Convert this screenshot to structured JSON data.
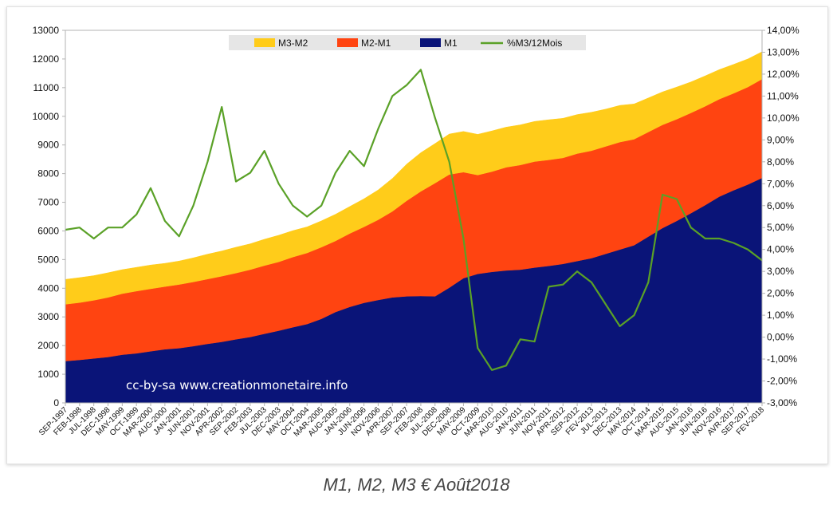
{
  "caption": "M1, M2, M3 € Août2018",
  "chart_data": {
    "type": "area",
    "title": "",
    "annotation": "cc-by-sa www.creationmonetaire.info",
    "x": [
      "SEP-1997",
      "FEB-1998",
      "JUL-1998",
      "DEC-1998",
      "MAY-1999",
      "OCT-1999",
      "MAR-2000",
      "AUG-2000",
      "JAN-2001",
      "JUN-2001",
      "NOV-2001",
      "APR-2002",
      "SEP-2002",
      "FEB-2003",
      "JUL-2003",
      "DEC-2003",
      "MAY-2004",
      "OCT-2004",
      "MAR-2005",
      "AUG-2005",
      "JAN-2006",
      "JUN-2006",
      "NOV-2006",
      "APR-2007",
      "SEP-2007",
      "FEB-2008",
      "JUL-2008",
      "DEC-2008",
      "MAY-2009",
      "OCT-2009",
      "MAR-2010",
      "AUG-2010",
      "JAN-2011",
      "JUN-2011",
      "NOV-2011",
      "APR-2012",
      "SEP-2012",
      "FEV-2013",
      "JUL-2013",
      "DEC-2013",
      "MAY-2014",
      "OCT-2014",
      "MAR-2015",
      "AUG-2015",
      "JAN-2016",
      "JUN-2016",
      "NOV-2016",
      "AVR-2017",
      "SEP-2017",
      "FEV-2018"
    ],
    "left_axis": {
      "ylim": [
        0,
        13000
      ],
      "ticks": [
        "0",
        "1000",
        "2000",
        "3000",
        "4000",
        "5000",
        "6000",
        "7000",
        "8000",
        "9000",
        "10000",
        "11000",
        "12000",
        "13000"
      ]
    },
    "right_axis": {
      "ylim": [
        -3,
        14
      ],
      "ticks": [
        "-3,00%",
        "-2,00%",
        "-1,00%",
        "0,00%",
        "1,00%",
        "2,00%",
        "3,00%",
        "4,00%",
        "5,00%",
        "6,00%",
        "7,00%",
        "8,00%",
        "9,00%",
        "10,00%",
        "11,00%",
        "12,00%",
        "13,00%",
        "14,00%"
      ]
    },
    "legend_position": "top-center",
    "grid": false,
    "stacked": true,
    "series": [
      {
        "name": "M3-M2",
        "kind": "area",
        "axis": "left",
        "color": "#ffcc1a",
        "values": [
          870,
          870,
          860,
          860,
          840,
          830,
          830,
          810,
          820,
          840,
          870,
          880,
          900,
          900,
          920,
          930,
          920,
          910,
          920,
          930,
          940,
          980,
          1040,
          1150,
          1280,
          1350,
          1380,
          1410,
          1420,
          1420,
          1420,
          1400,
          1400,
          1400,
          1400,
          1380,
          1360,
          1340,
          1300,
          1280,
          1230,
          1190,
          1150,
          1120,
          1080,
          1060,
          1030,
          1010,
          980,
          950
        ]
      },
      {
        "name": "M2-M1",
        "kind": "area",
        "axis": "left",
        "color": "#ff4411",
        "values": [
          1980,
          2000,
          2030,
          2080,
          2130,
          2170,
          2180,
          2190,
          2220,
          2240,
          2260,
          2290,
          2310,
          2350,
          2380,
          2400,
          2450,
          2480,
          2500,
          2480,
          2560,
          2650,
          2800,
          3000,
          3330,
          3650,
          3950,
          3950,
          3700,
          3450,
          3500,
          3600,
          3650,
          3700,
          3700,
          3700,
          3750,
          3750,
          3750,
          3750,
          3700,
          3650,
          3600,
          3550,
          3500,
          3450,
          3400,
          3380,
          3400,
          3450
        ]
      },
      {
        "name": "M1",
        "kind": "area",
        "axis": "left",
        "color": "#0a1478",
        "values": [
          1460,
          1500,
          1550,
          1600,
          1680,
          1730,
          1800,
          1870,
          1910,
          1980,
          2060,
          2130,
          2220,
          2300,
          2410,
          2520,
          2640,
          2750,
          2930,
          3170,
          3350,
          3490,
          3590,
          3680,
          3720,
          3730,
          3720,
          4020,
          4350,
          4500,
          4570,
          4620,
          4650,
          4720,
          4780,
          4850,
          4950,
          5050,
          5200,
          5350,
          5500,
          5800,
          6100,
          6350,
          6620,
          6900,
          7200,
          7420,
          7620,
          7850
        ]
      },
      {
        "name": "%M3/12Mois",
        "kind": "line",
        "axis": "right",
        "color": "#5aa127",
        "values": [
          4.9,
          5.0,
          4.5,
          5.0,
          5.0,
          5.6,
          6.8,
          5.3,
          4.6,
          6.0,
          8.0,
          10.5,
          7.1,
          7.5,
          8.5,
          7.0,
          6.0,
          5.5,
          6.0,
          7.5,
          8.5,
          7.8,
          9.5,
          11.0,
          11.5,
          12.2,
          10.0,
          8.0,
          4.5,
          -0.5,
          -1.5,
          -1.3,
          -0.1,
          -0.2,
          2.3,
          2.4,
          3.0,
          2.5,
          1.5,
          0.5,
          1.0,
          2.5,
          6.5,
          6.3,
          5.0,
          4.5,
          4.5,
          4.3,
          4.0,
          3.5
        ]
      }
    ]
  }
}
